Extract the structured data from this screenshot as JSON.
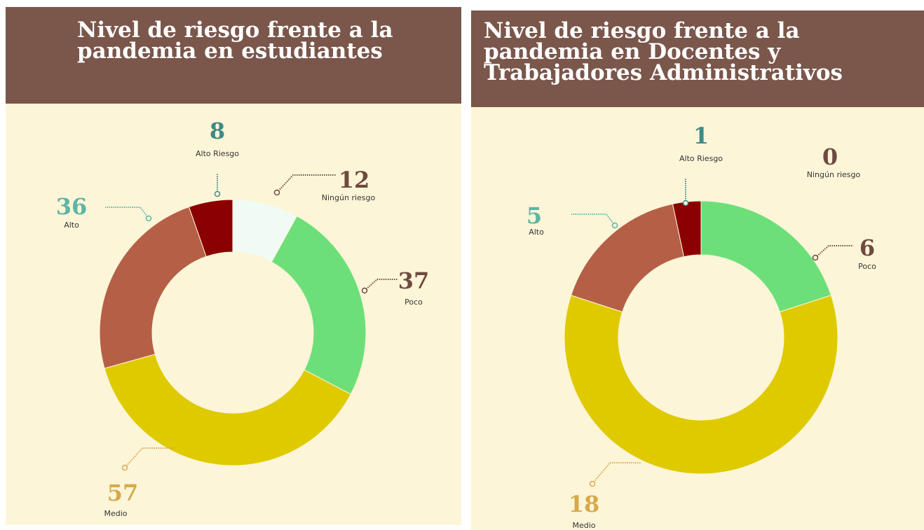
{
  "chart_data": [
    {
      "type": "donut",
      "title": "Nivel de riesgo frente a la pandemia en estudiantes",
      "categories": [
        "Ningún riesgo",
        "Poco",
        "Medio",
        "Alto",
        "Alto Riesgo"
      ],
      "values": [
        12,
        37,
        57,
        36,
        8
      ],
      "colors": [
        "#f1fbf5",
        "#6ddf79",
        "#dfca00",
        "#b55f47",
        "#8b0000"
      ],
      "label_colors": [
        "#6e4a40",
        "#6e4a40",
        "#d6a94a",
        "#5db5a3",
        "#3f8a86"
      ]
    },
    {
      "type": "donut",
      "title": "Nivel de riesgo frente a la pandemia en Docentes y Trabajadores Administrativos",
      "categories": [
        "Ningún riesgo",
        "Poco",
        "Medio",
        "Alto",
        "Alto Riesgo"
      ],
      "values": [
        0,
        6,
        18,
        5,
        1
      ],
      "colors": [
        "#f1fbf5",
        "#6ddf79",
        "#dfca00",
        "#b55f47",
        "#8b0000"
      ],
      "label_colors": [
        "#6e4a40",
        "#6e4a40",
        "#d6a94a",
        "#5db5a3",
        "#3f8a86"
      ]
    }
  ]
}
